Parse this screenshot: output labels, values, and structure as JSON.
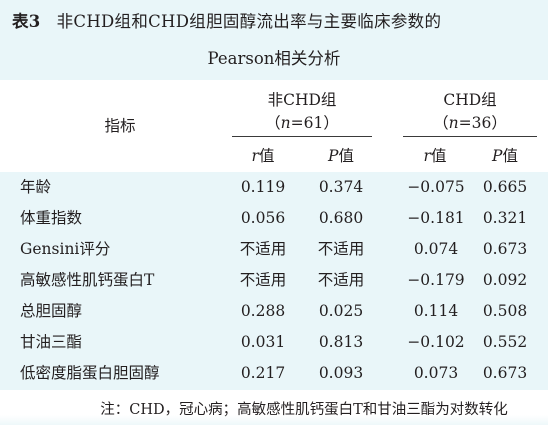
{
  "title": {
    "label": "表3",
    "line1": "非CHD组和CHD组胆固醇流出率与主要临床参数的",
    "line2": "Pearson相关分析"
  },
  "header": {
    "indicator": "指标",
    "group_a": "非CHD组",
    "group_a_n": "（n=61）",
    "group_b": "CHD组",
    "group_b_n": "（n=36）",
    "r_a": "r值",
    "p_a": "P值",
    "r_b": "r值",
    "p_b": "P值"
  },
  "rows": [
    {
      "name": "年龄",
      "r_a": "0.119",
      "p_a": "0.374",
      "r_b": "−0.075",
      "p_b": "0.665"
    },
    {
      "name": "体重指数",
      "r_a": "0.056",
      "p_a": "0.680",
      "r_b": "−0.181",
      "p_b": "0.321"
    },
    {
      "name": "Gensini评分",
      "r_a": "不适用",
      "p_a": "不适用",
      "r_b": "0.074",
      "p_b": "0.673"
    },
    {
      "name": "高敏感性肌钙蛋白T",
      "r_a": "不适用",
      "p_a": "不适用",
      "r_b": "−0.179",
      "p_b": "0.092"
    },
    {
      "name": "总胆固醇",
      "r_a": "0.288",
      "p_a": "0.025",
      "r_b": "0.114",
      "p_b": "0.508"
    },
    {
      "name": "甘油三酯",
      "r_a": "0.031",
      "p_a": "0.813",
      "r_b": "−0.102",
      "p_b": "0.552"
    },
    {
      "name": "低密度脂蛋白胆固醇",
      "r_a": "0.217",
      "p_a": "0.093",
      "r_b": "0.073",
      "p_b": "0.673"
    }
  ],
  "note": "注：CHD，冠心病；高敏感性肌钙蛋白T和甘油三酯为对数转化",
  "colors": {
    "band": "#e9f6f9",
    "text": "#231f20",
    "rule": "#3a3a3a"
  }
}
